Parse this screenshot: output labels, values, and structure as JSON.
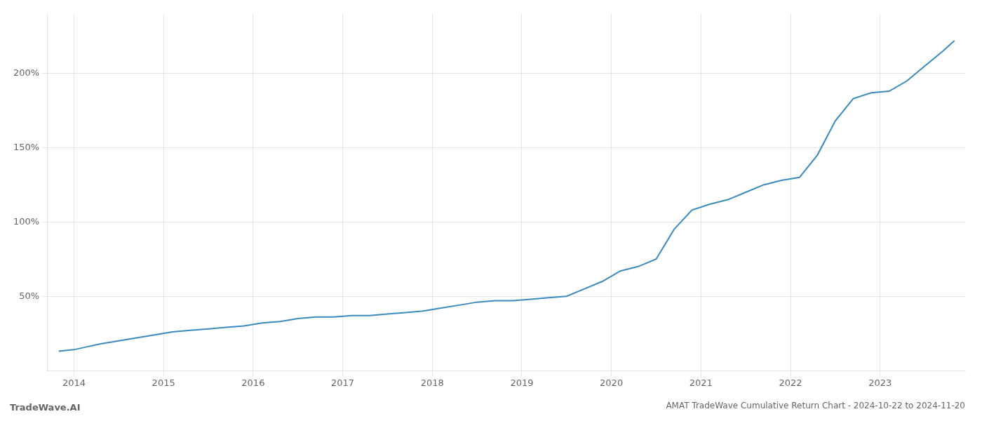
{
  "chart_data": {
    "type": "line",
    "title": "AMAT TradeWave Cumulative Return Chart - 2024-10-22 to 2024-11-20",
    "annotations": [
      "TradeWave.AI"
    ],
    "color": "#3a8abf",
    "grid": true,
    "x": [
      2013.83,
      2014.0,
      2014.15,
      2014.3,
      2014.5,
      2014.7,
      2014.9,
      2015.1,
      2015.3,
      2015.5,
      2015.7,
      2015.9,
      2016.1,
      2016.3,
      2016.5,
      2016.7,
      2016.9,
      2017.1,
      2017.3,
      2017.5,
      2017.7,
      2017.9,
      2018.1,
      2018.3,
      2018.5,
      2018.7,
      2018.9,
      2019.1,
      2019.3,
      2019.5,
      2019.7,
      2019.9,
      2020.1,
      2020.3,
      2020.5,
      2020.7,
      2020.9,
      2021.1,
      2021.3,
      2021.5,
      2021.7,
      2021.9,
      2022.1,
      2022.3,
      2022.5,
      2022.7,
      2022.9,
      2023.1,
      2023.3,
      2023.5,
      2023.7,
      2023.83
    ],
    "values": [
      13,
      14,
      16,
      18,
      20,
      22,
      24,
      26,
      27,
      28,
      29,
      30,
      32,
      33,
      35,
      36,
      36,
      37,
      37,
      38,
      39,
      40,
      42,
      44,
      46,
      47,
      47,
      48,
      49,
      50,
      55,
      60,
      67,
      70,
      75,
      95,
      108,
      112,
      115,
      120,
      125,
      128,
      130,
      145,
      168,
      183,
      187,
      188,
      195,
      205,
      215,
      222
    ],
    "xlim": [
      2013.7,
      2023.95
    ],
    "xticks": [
      2014,
      2015,
      2016,
      2017,
      2018,
      2019,
      2020,
      2021,
      2022,
      2023
    ],
    "ylim": [
      0,
      240
    ],
    "yticks": [
      {
        "value": 50,
        "label": "50%"
      },
      {
        "value": 100,
        "label": "100%"
      },
      {
        "value": 150,
        "label": "150%"
      },
      {
        "value": 200,
        "label": "200%"
      }
    ]
  }
}
